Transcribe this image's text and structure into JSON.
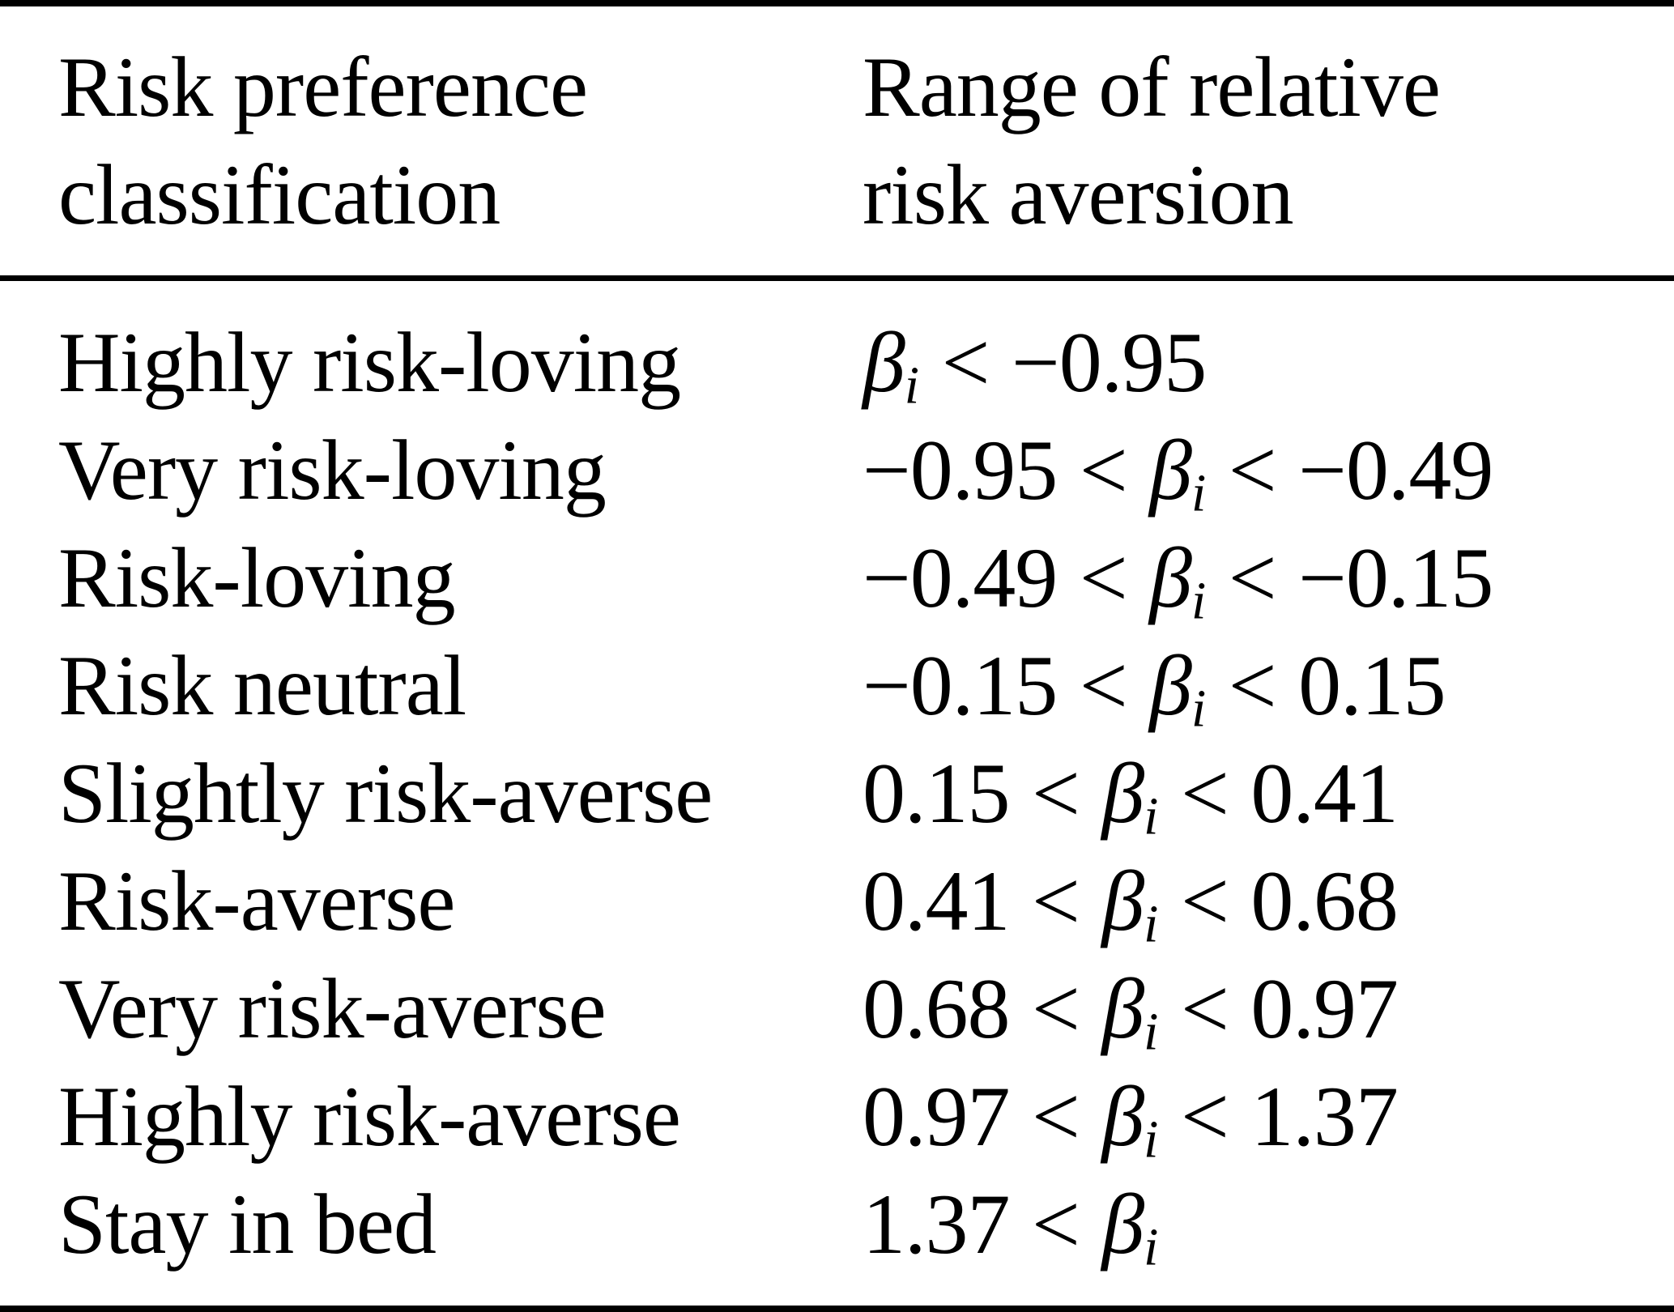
{
  "table": {
    "header": {
      "col1": [
        "Risk preference",
        "classification"
      ],
      "col2": [
        "Range of relative",
        "risk aversion"
      ]
    },
    "math": {
      "beta": "β",
      "subscript": "i",
      "less_than": "<"
    },
    "rows": [
      {
        "classification": "Highly risk-loving",
        "lower": "",
        "upper": "−0.95"
      },
      {
        "classification": "Very risk-loving",
        "lower": "−0.95",
        "upper": "−0.49"
      },
      {
        "classification": "Risk-loving",
        "lower": "−0.49",
        "upper": "−0.15"
      },
      {
        "classification": "Risk neutral",
        "lower": "−0.15",
        "upper": "0.15"
      },
      {
        "classification": "Slightly risk-averse",
        "lower": "0.15",
        "upper": "0.41"
      },
      {
        "classification": "Risk-averse",
        "lower": "0.41",
        "upper": "0.68"
      },
      {
        "classification": "Very risk-averse",
        "lower": "0.68",
        "upper": "0.97"
      },
      {
        "classification": "Highly risk-averse",
        "lower": "0.97",
        "upper": "1.37"
      },
      {
        "classification": "Stay in bed",
        "lower": "1.37",
        "upper": ""
      }
    ],
    "colors": {
      "text": "#000000",
      "background": "#ffffff",
      "rule": "#000000"
    }
  }
}
